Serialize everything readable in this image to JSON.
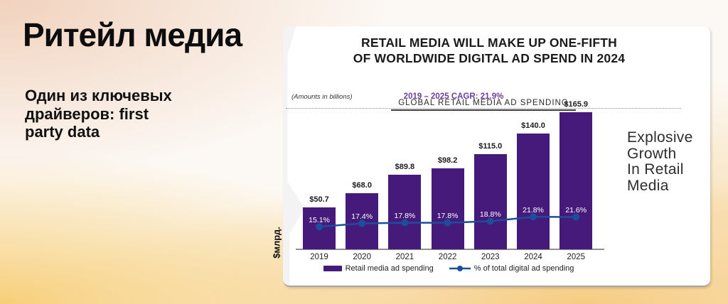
{
  "slide": {
    "title": "Ритейл медиа",
    "subtitle_lines": [
      "Один из ключевых",
      "драйверов: first",
      "party data"
    ],
    "y_axis_label": "$млрд.",
    "side_note_lines": [
      "Explosive",
      "Growth",
      "In Retail",
      "Media"
    ]
  },
  "card": {
    "title_line1": "RETAIL MEDIA WILL MAKE UP ONE-FIFTH",
    "title_line2": "OF WORLDWIDE DIGITAL AD SPEND IN 2024",
    "section_label": "GLOBAL RETAIL MEDIA AD SPENDING",
    "amounts_note": "(Amounts in billions)",
    "cagr_note": "2019 – 2025 CAGR: 21.9%"
  },
  "chart_data": {
    "type": "bar",
    "title": "GLOBAL RETAIL MEDIA AD SPENDING",
    "categories": [
      "2019",
      "2020",
      "2021",
      "2022",
      "2023",
      "2024",
      "2025"
    ],
    "series": [
      {
        "name": "Retail media ad spending",
        "type": "bar",
        "values": [
          50.7,
          68.0,
          89.8,
          98.2,
          115.0,
          140.0,
          165.9
        ],
        "labels": [
          "$50.7",
          "$68.0",
          "$89.8",
          "$98.2",
          "$115.0",
          "$140.0",
          "$165.9"
        ],
        "color": "#461a7a"
      },
      {
        "name": "% of total digital ad spending",
        "type": "line",
        "values": [
          15.1,
          17.4,
          17.8,
          17.8,
          18.8,
          21.8,
          21.6
        ],
        "labels": [
          "15.1%",
          "17.4%",
          "17.8%",
          "17.8%",
          "18.8%",
          "21.8%",
          "21.6%"
        ],
        "color": "#1b4e9b"
      }
    ],
    "xlabel": "",
    "ylabel": "$млрд.",
    "ylim": [
      0,
      175
    ],
    "grid": false,
    "legend_position": "bottom"
  },
  "colors": {
    "bar": "#461a7a",
    "line": "#1b4e9b",
    "cagr_text": "#6b3fa0",
    "background_peach": "#f1d2bd",
    "background_gold": "#f7cf7a"
  }
}
